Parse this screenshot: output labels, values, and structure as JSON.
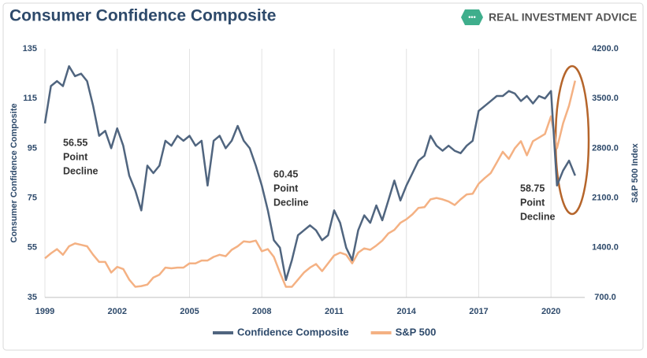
{
  "header": {
    "title": "Consumer Confidence Composite",
    "brand": "REAL INVESTMENT ADVICE"
  },
  "chart_data": {
    "type": "line",
    "ylabel": "Consumer Confidence Composite",
    "y2label": "S&P 500 Index",
    "x": [
      1999,
      1999.25,
      1999.5,
      1999.75,
      2000,
      2000.25,
      2000.5,
      2000.75,
      2001,
      2001.25,
      2001.5,
      2001.75,
      2002,
      2002.25,
      2002.5,
      2002.75,
      2003,
      2003.25,
      2003.5,
      2003.75,
      2004,
      2004.25,
      2004.5,
      2004.75,
      2005,
      2005.25,
      2005.5,
      2005.75,
      2006,
      2006.25,
      2006.5,
      2006.75,
      2007,
      2007.25,
      2007.5,
      2007.75,
      2008,
      2008.25,
      2008.5,
      2008.75,
      2009,
      2009.25,
      2009.5,
      2009.75,
      2010,
      2010.25,
      2010.5,
      2010.75,
      2011,
      2011.25,
      2011.5,
      2011.75,
      2012,
      2012.25,
      2012.5,
      2012.75,
      2013,
      2013.25,
      2013.5,
      2013.75,
      2014,
      2014.25,
      2014.5,
      2014.75,
      2015,
      2015.25,
      2015.5,
      2015.75,
      2016,
      2016.25,
      2016.5,
      2016.75,
      2017,
      2017.25,
      2017.5,
      2017.75,
      2018,
      2018.25,
      2018.5,
      2018.75,
      2019,
      2019.25,
      2019.5,
      2019.75,
      2020,
      2020.25,
      2020.5,
      2020.75,
      2021
    ],
    "series": [
      {
        "name": "Confidence Composite",
        "color": "#50657f",
        "values": [
          105,
          120,
          122,
          120,
          128,
          124,
          125,
          122,
          112,
          100,
          102,
          95,
          103,
          96,
          84,
          78,
          70,
          88,
          85,
          88,
          98,
          96,
          100,
          98,
          100,
          96,
          98,
          80,
          98,
          100,
          95,
          98,
          104,
          98,
          95,
          88,
          80,
          70,
          58,
          55,
          42,
          50,
          60,
          62,
          64,
          62,
          58,
          60,
          70,
          65,
          55,
          50,
          62,
          68,
          65,
          72,
          66,
          74,
          82,
          74,
          80,
          85,
          90,
          92,
          100,
          96,
          94,
          96,
          94,
          93,
          96,
          98,
          110,
          112,
          114,
          116,
          116,
          118,
          117,
          114,
          116,
          113,
          116,
          115,
          118,
          80,
          86,
          90,
          84
        ]
      },
      {
        "name": "S&P 500",
        "color": "#f4b183",
        "axis": "y2",
        "values": [
          1250,
          1320,
          1380,
          1300,
          1420,
          1460,
          1440,
          1420,
          1300,
          1200,
          1200,
          1050,
          1130,
          1100,
          950,
          850,
          860,
          880,
          980,
          1020,
          1120,
          1110,
          1120,
          1120,
          1180,
          1180,
          1220,
          1220,
          1270,
          1300,
          1280,
          1370,
          1420,
          1490,
          1480,
          1500,
          1350,
          1380,
          1270,
          1050,
          850,
          850,
          950,
          1050,
          1120,
          1170,
          1070,
          1180,
          1290,
          1330,
          1300,
          1180,
          1330,
          1390,
          1370,
          1430,
          1500,
          1600,
          1650,
          1750,
          1800,
          1870,
          1960,
          1970,
          2080,
          2100,
          2080,
          2050,
          2000,
          2080,
          2150,
          2160,
          2300,
          2380,
          2450,
          2600,
          2750,
          2650,
          2800,
          2900,
          2700,
          2900,
          2950,
          3000,
          3250,
          2800,
          3150,
          3400,
          3750
        ]
      }
    ],
    "xlim": [
      1999,
      2021.4
    ],
    "xticks": [
      1999,
      2002,
      2005,
      2008,
      2011,
      2014,
      2017,
      2020
    ],
    "ylim": [
      35,
      135
    ],
    "yticks": [
      35,
      55,
      75,
      95,
      115,
      135
    ],
    "y2lim": [
      700,
      4200
    ],
    "y2ticks": [
      {
        "value": 700,
        "label": "700.0"
      },
      {
        "value": 1400,
        "label": "1400.0"
      },
      {
        "value": 2100,
        "label": "2100.0"
      },
      {
        "value": 2800,
        "label": "2800.0"
      },
      {
        "value": 3500,
        "label": "3500.0"
      },
      {
        "value": 4200,
        "label": "4200.0"
      }
    ],
    "xgrid": true,
    "legend": "bottom",
    "annotations": [
      {
        "lines": [
          "56.55",
          "Point",
          "Decline"
        ]
      },
      {
        "lines": [
          "60.45",
          "Point",
          "Decline"
        ]
      },
      {
        "lines": [
          "58.75",
          "Point",
          "Decline"
        ]
      }
    ]
  }
}
